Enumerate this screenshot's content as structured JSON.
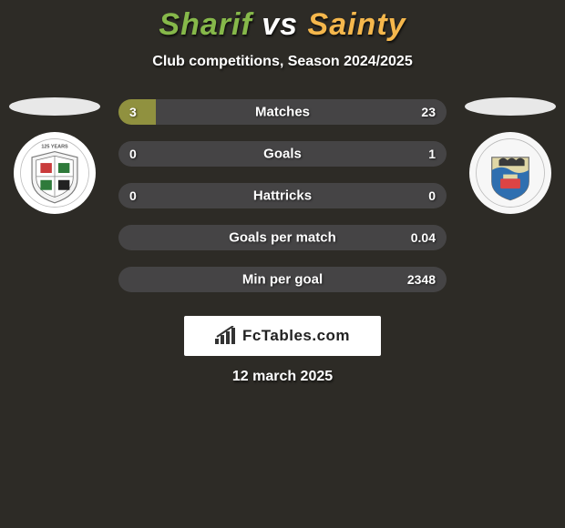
{
  "title": {
    "player1": "Sharif",
    "vs": "vs",
    "player2": "Sainty"
  },
  "subtitle": "Club competitions, Season 2024/2025",
  "colors": {
    "left_bar": "#90913f",
    "right_bar": "#454445",
    "background": "#2d2b26"
  },
  "stats": [
    {
      "label": "Matches",
      "left_val": "3",
      "right_val": "23",
      "left_pct": 11.5,
      "right_pct": 88.5
    },
    {
      "label": "Goals",
      "left_val": "0",
      "right_val": "1",
      "left_pct": 0,
      "right_pct": 100
    },
    {
      "label": "Hattricks",
      "left_val": "0",
      "right_val": "0",
      "left_pct": 0,
      "right_pct": 100
    },
    {
      "label": "Goals per match",
      "left_val": "",
      "right_val": "0.04",
      "left_pct": 0,
      "right_pct": 100
    },
    {
      "label": "Min per goal",
      "left_val": "",
      "right_val": "2348",
      "left_pct": 0,
      "right_pct": 100
    }
  ],
  "footer_brand": "FcTables.com",
  "date": "12 march 2025"
}
